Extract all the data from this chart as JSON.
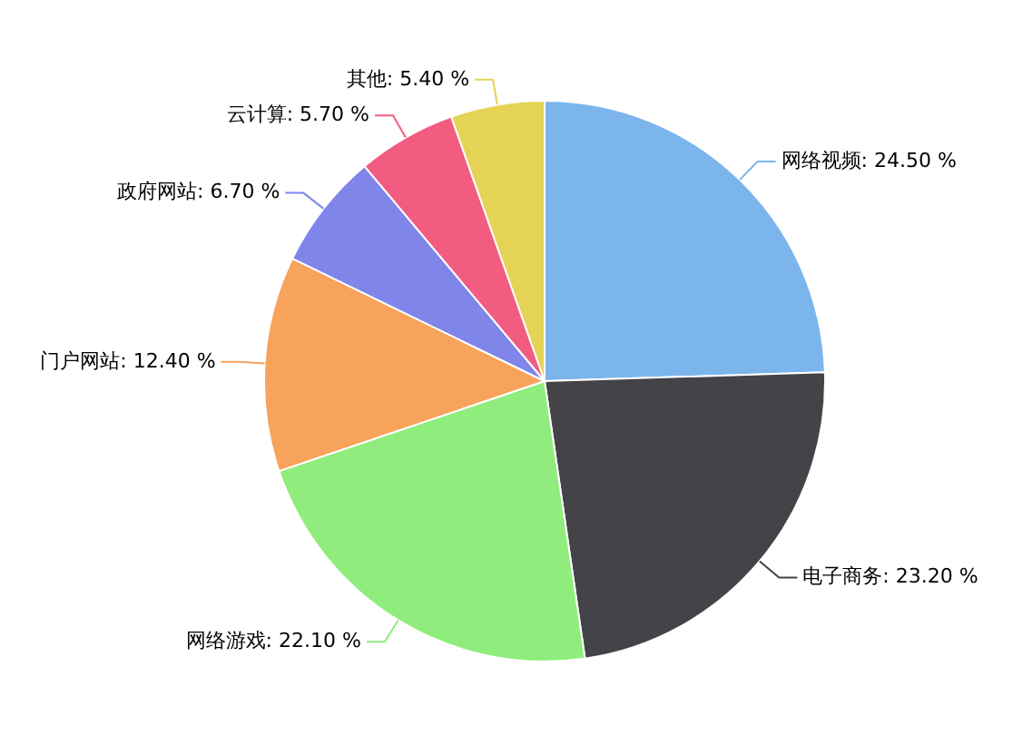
{
  "chart_data": {
    "type": "pie",
    "categories": [
      "网络视频",
      "电子商务",
      "网络游戏",
      "门户网站",
      "政府网站",
      "云计算",
      "其他"
    ],
    "values": [
      24.5,
      23.2,
      22.1,
      12.4,
      6.7,
      5.7,
      5.4
    ],
    "colors": [
      "#7cb5ec",
      "#434348",
      "#90ed7d",
      "#f7a35c",
      "#8085e9",
      "#f15c80",
      "#e4d354"
    ],
    "value_labels": [
      "24.50 %",
      "23.20 %",
      "22.10 %",
      "12.40 %",
      "6.70 %",
      "5.70 %",
      "5.40 %"
    ],
    "legend": false
  }
}
